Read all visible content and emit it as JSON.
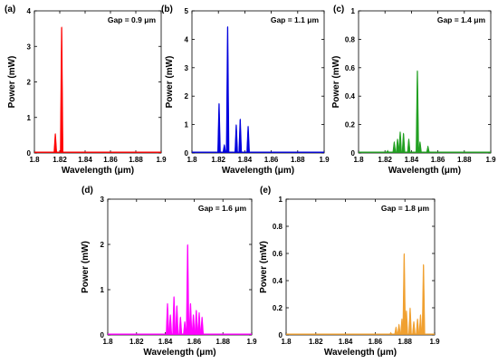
{
  "chart_data": [
    {
      "type": "line",
      "panel_label": "(a)",
      "annotation": "Gap = 0.9 μm",
      "color": "#ff0000",
      "xlabel": "Wavelength (μm)",
      "ylabel": "Power (mW)",
      "xlim": [
        1.8,
        1.9
      ],
      "ylim": [
        0,
        4
      ],
      "xticks": [
        "1.8",
        "1.82",
        "1.84",
        "1.86",
        "1.88",
        "1.9"
      ],
      "yticks": [
        "0",
        "1",
        "2",
        "3",
        "4"
      ],
      "series": [
        {
          "x": [
            1.8165,
            1.8215
          ],
          "values": [
            0.55,
            3.55
          ]
        }
      ]
    },
    {
      "type": "line",
      "panel_label": "(b)",
      "annotation": "Gap = 1.1 μm",
      "color": "#0000dd",
      "xlabel": "Wavelength (μm)",
      "ylabel": "Power (mW)",
      "xlim": [
        1.8,
        1.9
      ],
      "ylim": [
        0,
        5
      ],
      "xticks": [
        "1.8",
        "1.82",
        "1.84",
        "1.86",
        "1.88",
        "1.9"
      ],
      "yticks": [
        "0",
        "1",
        "2",
        "3",
        "4",
        "5"
      ],
      "series": [
        {
          "x": [
            1.8205,
            1.8245,
            1.827,
            1.8335,
            1.8365,
            1.8425
          ],
          "values": [
            1.75,
            0.3,
            4.45,
            1.0,
            1.2,
            0.95
          ]
        }
      ]
    },
    {
      "type": "line",
      "panel_label": "(c)",
      "annotation": "Gap = 1.4 μm",
      "color": "#22a022",
      "xlabel": "Wavelength (μm)",
      "ylabel": "Power (mW)",
      "xlim": [
        1.8,
        1.9
      ],
      "ylim": [
        0,
        1
      ],
      "xticks": [
        "1.8",
        "1.82",
        "1.84",
        "1.86",
        "1.88",
        "1.9"
      ],
      "yticks": [
        "0",
        "0.2",
        "0.4",
        "0.6",
        "0.8",
        "1"
      ],
      "series": [
        {
          "x": [
            1.822,
            1.827,
            1.8295,
            1.8315,
            1.834,
            1.838,
            1.8445,
            1.8465,
            1.8525
          ],
          "values": [
            0.02,
            0.08,
            0.1,
            0.15,
            0.14,
            0.1,
            0.58,
            0.08,
            0.05
          ]
        }
      ]
    },
    {
      "type": "line",
      "panel_label": "(d)",
      "annotation": "Gap = 1.6 μm",
      "color": "#ff00ff",
      "xlabel": "Wavelength (μm)",
      "ylabel": "Power (mW)",
      "xlim": [
        1.8,
        1.9
      ],
      "ylim": [
        0,
        3
      ],
      "xticks": [
        "1.8",
        "1.82",
        "1.84",
        "1.86",
        "1.88",
        "1.9"
      ],
      "yticks": [
        "0",
        "1",
        "2",
        "3"
      ],
      "series": [
        {
          "x": [
            1.8415,
            1.8435,
            1.846,
            1.848,
            1.8505,
            1.8535,
            1.8555,
            1.8575,
            1.8595,
            1.8615,
            1.8635,
            1.8655
          ],
          "values": [
            0.7,
            0.45,
            0.85,
            0.65,
            0.4,
            0.3,
            2.0,
            0.7,
            0.45,
            0.55,
            0.5,
            0.4
          ]
        }
      ]
    },
    {
      "type": "line",
      "panel_label": "(e)",
      "annotation": "Gap = 1.8 μm",
      "color": "#f0a030",
      "xlabel": "Wavelength (μm)",
      "ylabel": "Power (mW)",
      "xlim": [
        1.8,
        1.9
      ],
      "ylim": [
        0,
        1
      ],
      "xticks": [
        "1.8",
        "1.82",
        "1.84",
        "1.86",
        "1.88",
        "1.9"
      ],
      "yticks": [
        "0",
        "0.2",
        "0.4",
        "0.6",
        "0.8",
        "1"
      ],
      "series": [
        {
          "x": [
            1.8705,
            1.874,
            1.876,
            1.878,
            1.8795,
            1.881,
            1.8835,
            1.886,
            1.8885,
            1.8905,
            1.8925
          ],
          "values": [
            0.02,
            0.06,
            0.08,
            0.12,
            0.6,
            0.18,
            0.2,
            0.1,
            0.12,
            0.15,
            0.52
          ]
        }
      ]
    }
  ]
}
